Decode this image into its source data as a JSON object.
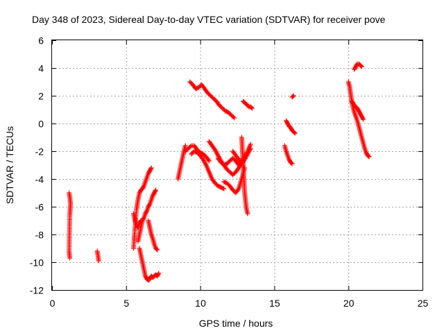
{
  "chart_data": {
    "type": "scatter",
    "title": "Day 348 of 2023, Sidereal Day-to-day VTEC variation (SDTVAR) for receiver pove",
    "xlabel": "GPS time / hours",
    "ylabel": "SDTVAR / TECUs",
    "xlim": [
      0,
      25
    ],
    "ylim": [
      -12,
      6
    ],
    "xticks": [
      0,
      5,
      10,
      15,
      20,
      25
    ],
    "yticks": [
      -12,
      -10,
      -8,
      -6,
      -4,
      -2,
      0,
      2,
      4,
      6
    ],
    "xtick_labels": [
      "0",
      "5",
      "10",
      "15",
      "20",
      "25"
    ],
    "ytick_labels": [
      "-12",
      "-10",
      "-8",
      "-6",
      "-4",
      "-2",
      "0",
      "2",
      "4",
      "6"
    ],
    "grid": true,
    "marker": "plus",
    "color": "#ff0000",
    "tracks": [
      {
        "x": [
          1.15,
          1.2,
          1.25,
          1.2,
          1.15,
          1.2
        ],
        "y": [
          -5.0,
          -5.3,
          -5.8,
          -6.6,
          -9.2,
          -9.7
        ]
      },
      {
        "x": [
          3.05,
          3.1,
          3.15
        ],
        "y": [
          -9.2,
          -9.5,
          -9.9
        ]
      },
      {
        "x": [
          5.5,
          5.6,
          5.7,
          5.8,
          5.9,
          6.0,
          6.1,
          6.2,
          6.3,
          6.4,
          6.5,
          6.6,
          6.7
        ],
        "y": [
          -9.0,
          -7.5,
          -6.2,
          -5.5,
          -5.0,
          -4.8,
          -4.7,
          -4.5,
          -4.2,
          -3.9,
          -3.6,
          -3.4,
          -3.2
        ]
      },
      {
        "x": [
          5.5,
          5.6,
          5.7,
          5.8,
          5.9,
          6.0
        ],
        "y": [
          -6.5,
          -7.0,
          -7.3,
          -7.5,
          -7.2,
          -7.0
        ]
      },
      {
        "x": [
          5.8,
          5.9,
          6.0,
          6.1,
          6.2,
          6.3,
          6.4,
          6.5,
          6.6,
          6.7,
          6.8,
          6.9,
          7.0
        ],
        "y": [
          -8.5,
          -8.0,
          -7.5,
          -7.0,
          -6.8,
          -6.5,
          -6.3,
          -6.0,
          -5.8,
          -5.5,
          -5.2,
          -5.0,
          -4.8
        ]
      },
      {
        "x": [
          5.9,
          6.0,
          6.1,
          6.2,
          6.3,
          6.4,
          6.5,
          6.6,
          6.7,
          6.8,
          6.9,
          7.0,
          7.1,
          7.2
        ],
        "y": [
          -9.0,
          -9.5,
          -10.0,
          -10.5,
          -11.0,
          -11.2,
          -11.3,
          -11.2,
          -11.0,
          -11.1,
          -11.0,
          -10.9,
          -11.0,
          -10.8
        ]
      },
      {
        "x": [
          6.5,
          6.6,
          6.7,
          6.8,
          6.9,
          7.0,
          7.1
        ],
        "y": [
          -7.0,
          -7.5,
          -8.0,
          -8.3,
          -8.7,
          -9.0,
          -9.1
        ]
      },
      {
        "x": [
          8.5,
          8.6,
          8.7,
          8.8,
          8.9,
          9.0
        ],
        "y": [
          -4.0,
          -3.5,
          -3.0,
          -2.5,
          -2.0,
          -1.6
        ]
      },
      {
        "x": [
          9.0,
          9.2,
          9.4,
          9.6,
          9.8,
          10.0,
          10.2,
          10.4,
          10.6
        ],
        "y": [
          -2.0,
          -1.8,
          -1.6,
          -1.6,
          -1.9,
          -2.1,
          -2.2,
          -2.4,
          -2.7
        ]
      },
      {
        "x": [
          9.3,
          9.5,
          9.7,
          9.9,
          10.1,
          10.3,
          10.5,
          10.7,
          10.9,
          11.1,
          11.3,
          11.5,
          11.7,
          11.9,
          12.1,
          12.3
        ],
        "y": [
          3.0,
          2.8,
          2.5,
          2.6,
          2.8,
          2.5,
          2.2,
          2.0,
          1.8,
          1.6,
          1.3,
          1.1,
          0.9,
          0.8,
          0.6,
          0.4
        ]
      },
      {
        "x": [
          9.4,
          9.6,
          9.8,
          10.0,
          10.2,
          10.4,
          10.6,
          10.8,
          11.0,
          11.2,
          11.4,
          11.6
        ],
        "y": [
          -2.2,
          -2.0,
          -2.1,
          -2.3,
          -2.6,
          -3.0,
          -3.5,
          -4.0,
          -4.3,
          -4.5,
          -4.6,
          -4.7
        ]
      },
      {
        "x": [
          10.6,
          10.8,
          11.0,
          11.2,
          11.4,
          11.6,
          11.8,
          12.0,
          12.2,
          12.4,
          12.6,
          12.8,
          13.0,
          13.2,
          13.4
        ],
        "y": [
          -1.3,
          -1.6,
          -1.9,
          -2.3,
          -2.7,
          -3.0,
          -3.3,
          -3.5,
          -3.7,
          -3.5,
          -3.2,
          -2.8,
          -2.4,
          -2.0,
          -1.5
        ]
      },
      {
        "x": [
          11.2,
          11.4,
          11.6,
          11.8,
          12.0,
          12.2,
          12.4,
          12.6
        ],
        "y": [
          -2.5,
          -2.8,
          -3.0,
          -2.9,
          -2.7,
          -2.5,
          -2.7,
          -3.0
        ]
      },
      {
        "x": [
          11.6,
          11.8,
          12.0,
          12.2,
          12.4,
          12.6,
          12.8,
          13.0
        ],
        "y": [
          -4.2,
          -4.3,
          -4.5,
          -4.8,
          -5.0,
          -4.7,
          -4.0,
          -3.2
        ]
      },
      {
        "x": [
          12.2,
          12.4,
          12.6,
          12.8,
          13.0,
          13.2,
          13.4
        ],
        "y": [
          -2.0,
          -2.3,
          -2.6,
          -2.9,
          -2.6,
          -2.2,
          -1.8
        ]
      },
      {
        "x": [
          12.8,
          12.85,
          12.9,
          12.95,
          13.0,
          13.05,
          13.1,
          13.15,
          13.2
        ],
        "y": [
          -1.0,
          -2.0,
          -3.0,
          -4.0,
          -5.0,
          -5.5,
          -6.0,
          -6.3,
          -6.5
        ]
      },
      {
        "x": [
          12.9,
          13.0,
          13.1,
          13.2,
          13.3,
          13.4,
          13.5
        ],
        "y": [
          1.6,
          1.5,
          1.4,
          1.3,
          1.2,
          1.2,
          1.1
        ]
      },
      {
        "x": [
          15.7,
          15.8,
          15.9,
          16.0,
          16.1,
          16.2
        ],
        "y": [
          -1.6,
          -2.0,
          -2.3,
          -2.6,
          -2.8,
          -2.9
        ]
      },
      {
        "x": [
          15.8,
          15.9,
          16.0,
          16.1,
          16.2,
          16.3,
          16.4
        ],
        "y": [
          0.2,
          0.0,
          -0.2,
          -0.3,
          -0.5,
          -0.6,
          -0.7
        ]
      },
      {
        "x": [
          16.2,
          16.3
        ],
        "y": [
          1.9,
          2.0
        ]
      },
      {
        "x": [
          20.1,
          20.2,
          20.3,
          20.4,
          20.5,
          20.6,
          20.7,
          20.8,
          20.9,
          21.0,
          21.1,
          21.2,
          21.3,
          21.4
        ],
        "y": [
          2.5,
          1.8,
          1.2,
          0.8,
          0.5,
          0.2,
          -0.2,
          -0.6,
          -1.0,
          -1.4,
          -1.8,
          -2.1,
          -2.3,
          -2.4
        ]
      },
      {
        "x": [
          20.2,
          20.3,
          20.4,
          20.5,
          20.6,
          20.7,
          20.8,
          20.9,
          21.0
        ],
        "y": [
          1.6,
          1.5,
          1.3,
          1.2,
          1.1,
          0.9,
          0.7,
          0.5,
          0.3
        ]
      },
      {
        "x": [
          20.4,
          20.5,
          20.6,
          20.7,
          20.8,
          20.9
        ],
        "y": [
          3.9,
          4.1,
          4.3,
          4.3,
          4.2,
          4.1
        ]
      },
      {
        "x": [
          20.0,
          20.05,
          20.1
        ],
        "y": [
          3.0,
          2.8,
          2.6
        ]
      }
    ]
  }
}
